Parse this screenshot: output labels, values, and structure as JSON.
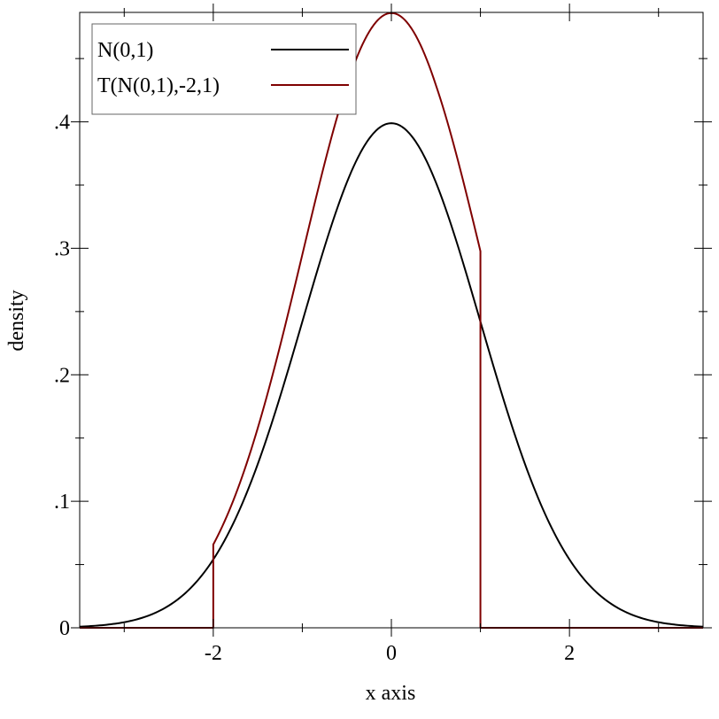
{
  "chart_data": {
    "type": "line",
    "title": "",
    "xlabel": "x axis",
    "ylabel": "density",
    "xlim": [
      -3.5,
      3.5
    ],
    "ylim": [
      0,
      0.4865
    ],
    "x_ticks": [
      {
        "value": -2,
        "label": "-2"
      },
      {
        "value": 0,
        "label": "0"
      },
      {
        "value": 2,
        "label": "2"
      }
    ],
    "y_ticks": [
      {
        "value": 0,
        "label": "0"
      },
      {
        "value": 0.1,
        "label": ".1"
      },
      {
        "value": 0.2,
        "label": ".2"
      },
      {
        "value": 0.3,
        "label": ".3"
      },
      {
        "value": 0.4,
        "label": ".4"
      }
    ],
    "grid": false,
    "legend_position": "top-left",
    "series": [
      {
        "name": "N(0,1)",
        "color": "#000000",
        "points": [
          [
            -3.5,
            0.0009
          ],
          [
            -3.0,
            0.0044
          ],
          [
            -2.5,
            0.0175
          ],
          [
            -2.0,
            0.054
          ],
          [
            -1.5,
            0.1295
          ],
          [
            -1.0,
            0.242
          ],
          [
            -0.5,
            0.3521
          ],
          [
            0.0,
            0.3989
          ],
          [
            0.5,
            0.3521
          ],
          [
            1.0,
            0.242
          ],
          [
            1.5,
            0.1295
          ],
          [
            2.0,
            0.054
          ],
          [
            2.5,
            0.0175
          ],
          [
            3.0,
            0.0044
          ],
          [
            3.5,
            0.0009
          ]
        ]
      },
      {
        "name": "T(N(0,1),-2,1)",
        "color": "#7f0000",
        "points": [
          [
            -3.5,
            0
          ],
          [
            -2.0,
            0
          ],
          [
            -2.0,
            0.0658
          ],
          [
            -1.5,
            0.158
          ],
          [
            -1.0,
            0.295
          ],
          [
            -0.5,
            0.429
          ],
          [
            0.0,
            0.486
          ],
          [
            0.5,
            0.429
          ],
          [
            1.0,
            0.2977
          ],
          [
            1.0,
            0
          ],
          [
            3.5,
            0
          ]
        ]
      }
    ]
  }
}
